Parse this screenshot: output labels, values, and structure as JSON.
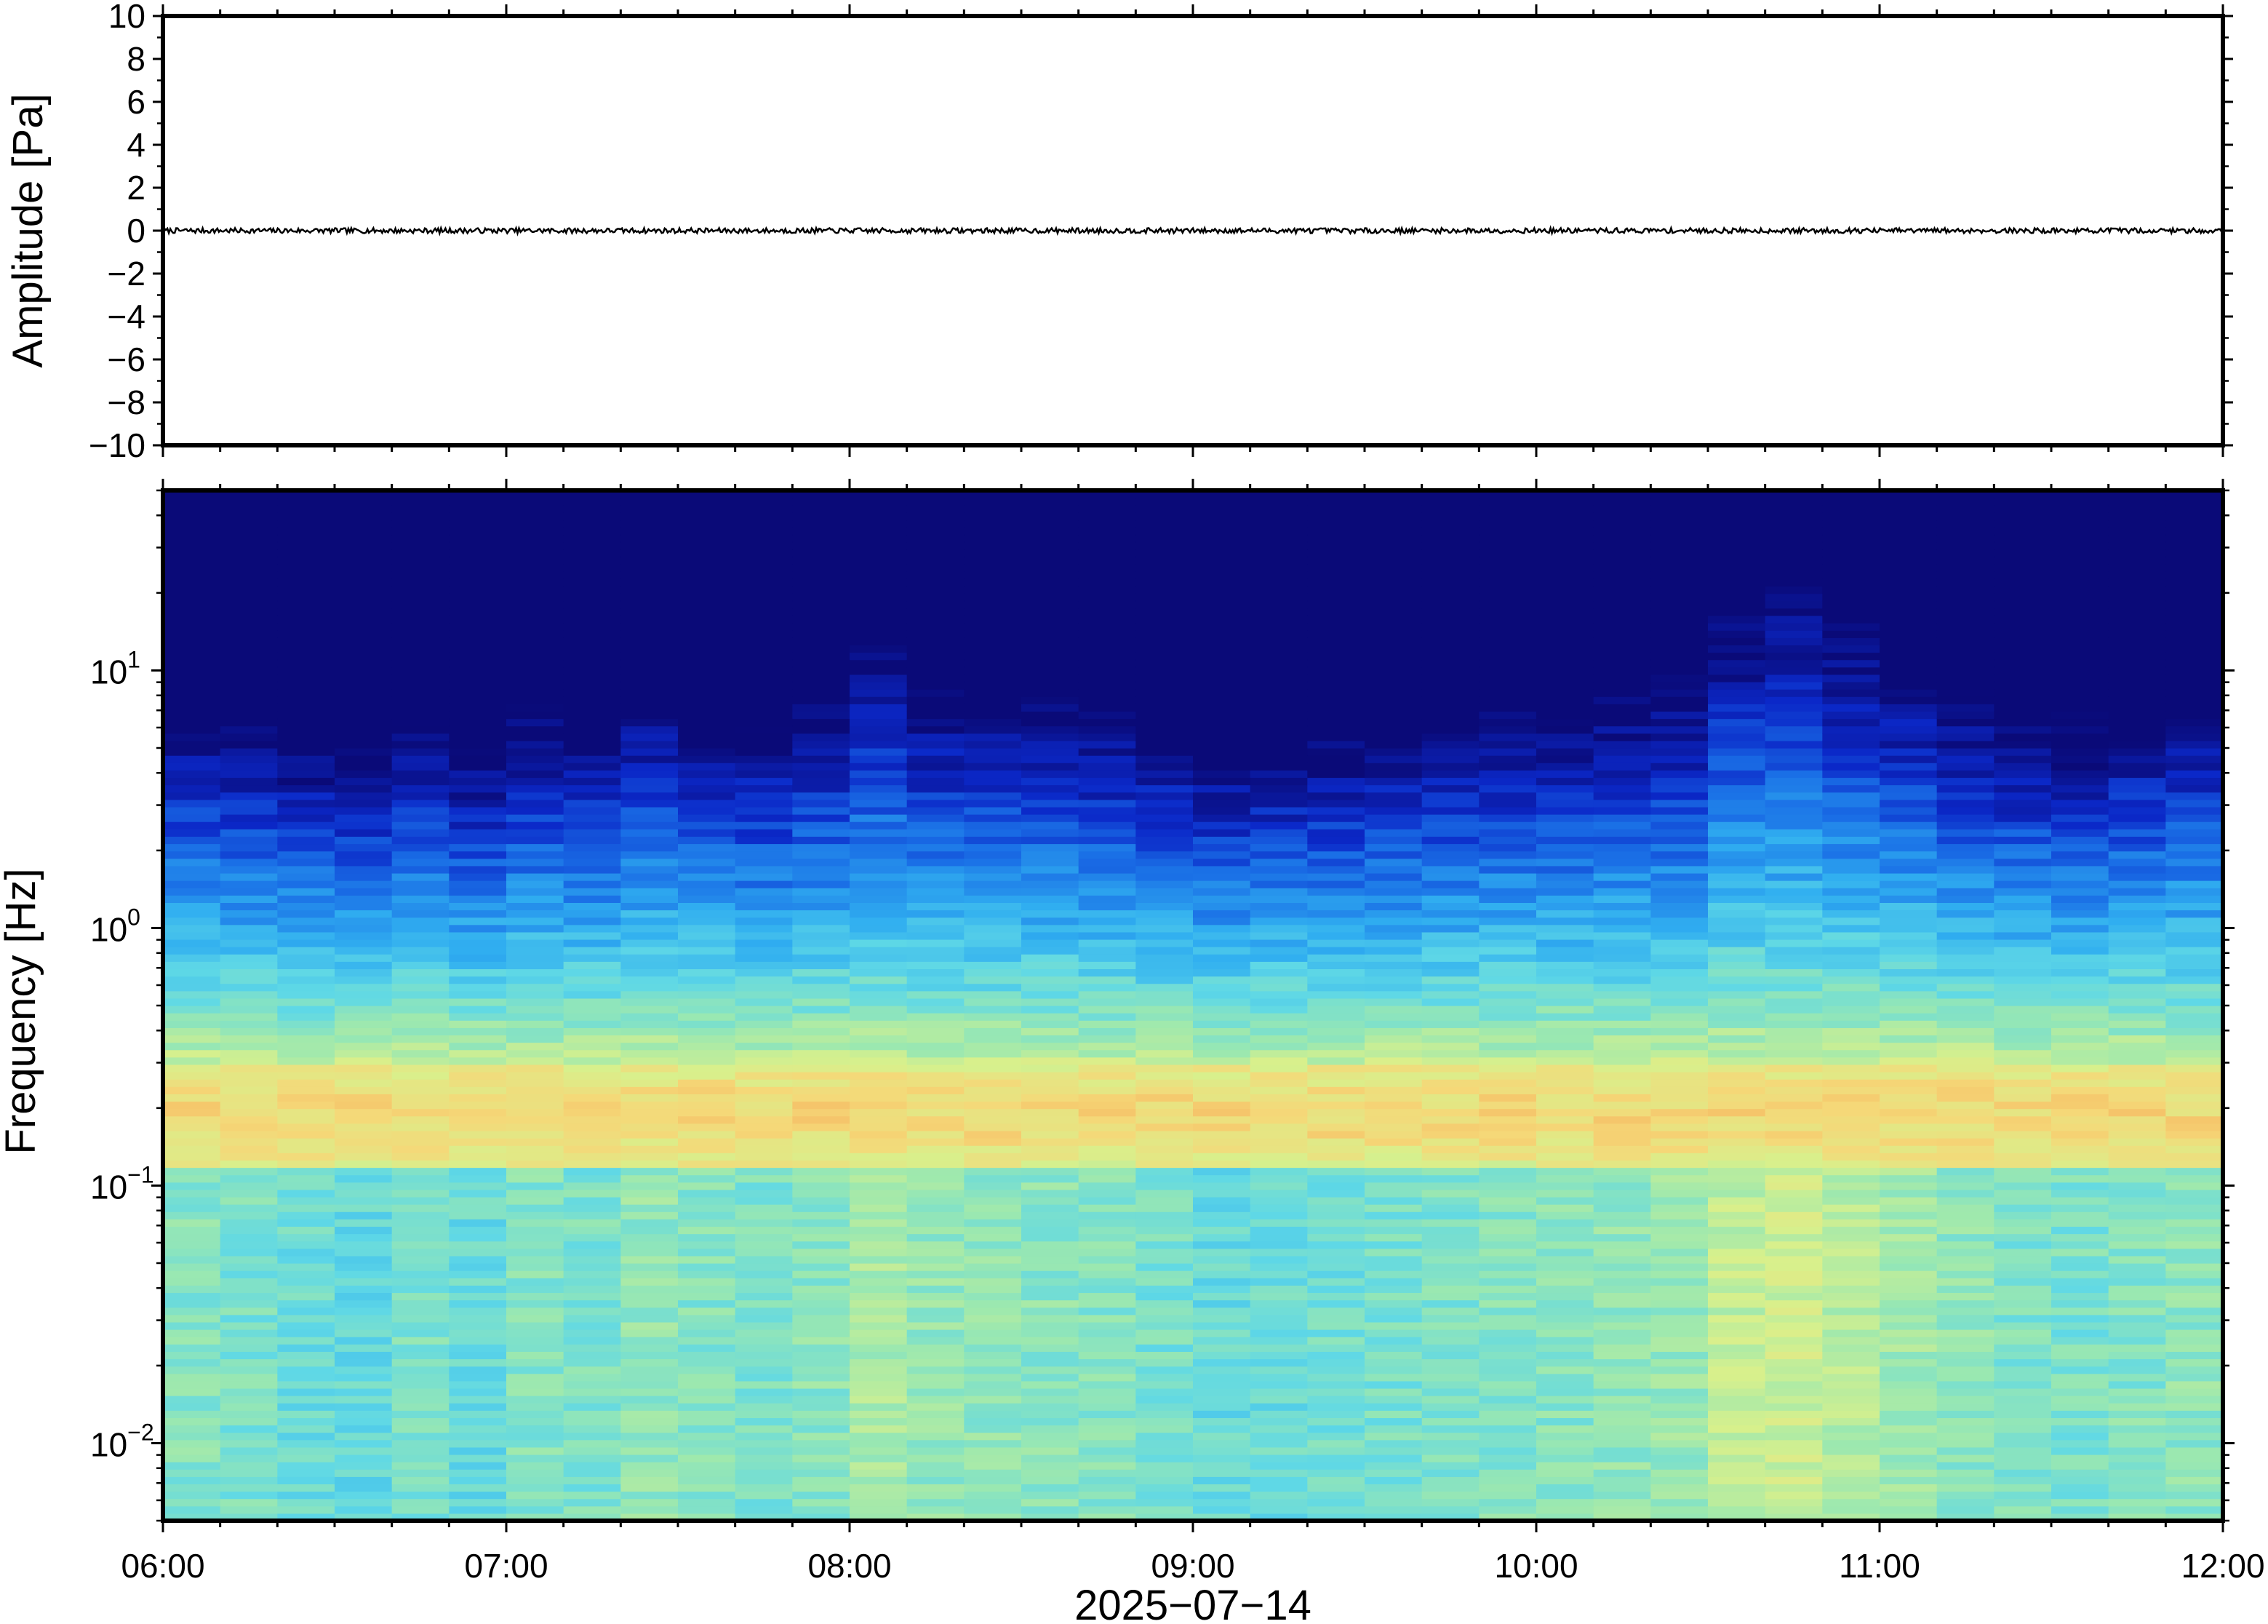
{
  "chart_data": [
    {
      "type": "line",
      "panel": "waveform",
      "ylabel": "Amplitude [Pa]",
      "ylim": [
        -10,
        10
      ],
      "yticks": [
        10,
        8,
        6,
        4,
        2,
        0,
        -2,
        -4,
        -6,
        -8,
        -10
      ],
      "ytick_labels": [
        "10",
        "8",
        "6",
        "4",
        "2",
        "0",
        "−2",
        "−4",
        "−6",
        "−8",
        "−10"
      ],
      "xlim": [
        "06:00",
        "12:00"
      ],
      "series_description_value": 0,
      "noise_amplitude": 0.12,
      "color": "#000000"
    },
    {
      "type": "heatmap",
      "panel": "spectrogram",
      "ylabel": "Frequency [Hz]",
      "yscale": "log",
      "ylim": [
        0.005,
        50
      ],
      "yticks": [
        10,
        1,
        0.1,
        0.01
      ],
      "ytick_labels": [
        {
          "base": "10",
          "exp": "1"
        },
        {
          "base": "10",
          "exp": "0"
        },
        {
          "base": "10",
          "exp": "−1"
        },
        {
          "base": "10",
          "exp": "−2"
        }
      ],
      "colormap": [
        "#0a0a78",
        "#0b28c8",
        "#1a6fe6",
        "#30aef0",
        "#5fd8e6",
        "#9be8b0",
        "#d8f08c",
        "#f5d878",
        "#f4a050"
      ],
      "xlabel": "2025−07−14",
      "xlim": [
        "06:00",
        "12:00"
      ],
      "xticks": [
        "06:00",
        "07:00",
        "08:00",
        "09:00",
        "10:00",
        "11:00",
        "12:00"
      ],
      "microseism_band_hz": [
        0.12,
        0.3
      ],
      "intervals": [
        {
          "start": "06:00",
          "level": 0.55
        },
        {
          "start": "06:10",
          "level": 0.5
        },
        {
          "start": "06:20",
          "level": 0.42
        },
        {
          "start": "06:30",
          "level": 0.38
        },
        {
          "start": "06:40",
          "level": 0.5
        },
        {
          "start": "06:50",
          "level": 0.4
        },
        {
          "start": "07:00",
          "level": 0.55
        },
        {
          "start": "07:10",
          "level": 0.5
        },
        {
          "start": "07:20",
          "level": 0.62
        },
        {
          "start": "07:30",
          "level": 0.55
        },
        {
          "start": "07:40",
          "level": 0.5
        },
        {
          "start": "07:50",
          "level": 0.58
        },
        {
          "start": "08:00",
          "level": 0.75
        },
        {
          "start": "08:10",
          "level": 0.62
        },
        {
          "start": "08:20",
          "level": 0.6
        },
        {
          "start": "08:30",
          "level": 0.58
        },
        {
          "start": "08:40",
          "level": 0.55
        },
        {
          "start": "08:50",
          "level": 0.48
        },
        {
          "start": "09:00",
          "level": 0.4
        },
        {
          "start": "09:10",
          "level": 0.42
        },
        {
          "start": "09:20",
          "level": 0.45
        },
        {
          "start": "09:30",
          "level": 0.5
        },
        {
          "start": "09:40",
          "level": 0.52
        },
        {
          "start": "09:50",
          "level": 0.55
        },
        {
          "start": "10:00",
          "level": 0.56
        },
        {
          "start": "10:10",
          "level": 0.6
        },
        {
          "start": "10:20",
          "level": 0.65
        },
        {
          "start": "10:30",
          "level": 0.85
        },
        {
          "start": "10:40",
          "level": 0.9
        },
        {
          "start": "10:50",
          "level": 0.8
        },
        {
          "start": "11:00",
          "level": 0.7
        },
        {
          "start": "11:10",
          "level": 0.6
        },
        {
          "start": "11:20",
          "level": 0.52
        },
        {
          "start": "11:30",
          "level": 0.5
        },
        {
          "start": "11:40",
          "level": 0.55
        },
        {
          "start": "11:50",
          "level": 0.6
        }
      ]
    }
  ]
}
